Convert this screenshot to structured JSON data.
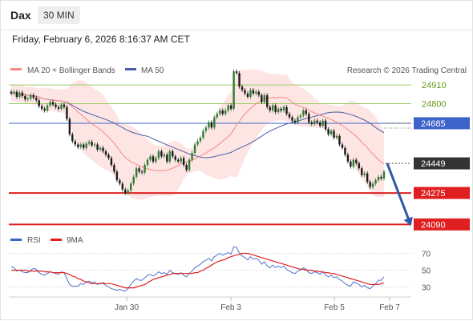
{
  "header": {
    "symbol": "Dax",
    "timeframe": "30 MIN",
    "datetime": "Friday, February 6, 2026 8:16:37 AM CET"
  },
  "legend": {
    "ma20": "MA 20 + Bollinger Bands",
    "ma50": "MA 50",
    "rsi": "RSI",
    "rsi_ma": "9MA"
  },
  "credit": "Research © 2026 Trading Central",
  "colors": {
    "ma20": "#f28b82",
    "ma50": "#4a5fa8",
    "band": "#fde0df",
    "green": "#9ccc65",
    "red": "#e02020",
    "blue": "#3d63c9",
    "dark": "#333333",
    "arrow": "#2e5aa8",
    "up": "#2e7d32",
    "down": "#1a1a1a"
  },
  "chart_data": [
    {
      "type": "candlestick",
      "ylim": [
        24040,
        25000
      ],
      "x_ticks": [
        "Jan 30",
        "Feb 3",
        "Feb 5",
        "Feb 7"
      ],
      "levels": [
        {
          "value": 24910,
          "label": "24910",
          "style": "green"
        },
        {
          "value": 24800,
          "label": "24800",
          "style": "green"
        },
        {
          "value": 24685,
          "label": "24685",
          "style": "blue"
        },
        {
          "value": 24449,
          "label": "24449",
          "style": "dark"
        },
        {
          "value": 24275,
          "label": "24275",
          "style": "red"
        },
        {
          "value": 24090,
          "label": "24090",
          "style": "red"
        }
      ],
      "forecast": {
        "from": 24449,
        "to": 24090
      },
      "close": [
        24860,
        24870,
        24840,
        24865,
        24845,
        24825,
        24830,
        24850,
        24835,
        24820,
        24785,
        24770,
        24760,
        24790,
        24810,
        24795,
        24780,
        24770,
        24795,
        24780,
        24710,
        24620,
        24580,
        24560,
        24545,
        24560,
        24540,
        24565,
        24575,
        24555,
        24560,
        24530,
        24540,
        24520,
        24500,
        24480,
        24440,
        24400,
        24350,
        24330,
        24295,
        24275,
        24290,
        24330,
        24370,
        24420,
        24400,
        24395,
        24440,
        24470,
        24490,
        24460,
        24480,
        24520,
        24490,
        24500,
        24460,
        24520,
        24490,
        24470,
        24460,
        24480,
        24440,
        24410,
        24470,
        24510,
        24560,
        24580,
        24600,
        24640,
        24660,
        24690,
        24660,
        24720,
        24740,
        24760,
        24740,
        24760,
        24790,
        24770,
        24990,
        24980,
        24900,
        24880,
        24860,
        24840,
        24880,
        24860,
        24870,
        24850,
        24810,
        24850,
        24780,
        24760,
        24790,
        24750,
        24770,
        24760,
        24780,
        24740,
        24720,
        24700,
        24690,
        24720,
        24730,
        24760,
        24740,
        24690,
        24680,
        24700,
        24690,
        24670,
        24700,
        24650,
        24620,
        24640,
        24600,
        24610,
        24560,
        24540,
        24500,
        24460,
        24430,
        24470,
        24450,
        24420,
        24380,
        24390,
        24340,
        24310,
        24330,
        24350,
        24370,
        24360,
        24400
      ]
    },
    {
      "type": "line",
      "ylim": [
        20,
        80
      ],
      "y_ticks": [
        "70",
        "50",
        "30"
      ],
      "rsi": [
        54,
        53,
        49,
        50,
        48,
        47,
        47,
        50,
        52,
        51,
        47,
        45,
        44,
        46,
        48,
        47,
        46,
        45,
        48,
        47,
        40,
        33,
        31,
        31,
        31,
        34,
        33,
        36,
        37,
        35,
        36,
        33,
        35,
        34,
        32,
        30,
        28,
        27,
        26,
        27,
        26,
        25,
        28,
        33,
        37,
        40,
        38,
        38,
        41,
        44,
        45,
        43,
        45,
        48,
        46,
        47,
        45,
        50,
        47,
        46,
        45,
        47,
        44,
        42,
        46,
        49,
        53,
        55,
        57,
        60,
        62,
        64,
        61,
        66,
        68,
        70,
        68,
        69,
        71,
        69,
        78,
        77,
        70,
        67,
        65,
        62,
        66,
        63,
        64,
        62,
        57,
        60,
        55,
        53,
        56,
        53,
        55,
        53,
        55,
        51,
        49,
        47,
        46,
        49,
        50,
        53,
        51,
        47,
        46,
        48,
        47,
        45,
        48,
        44,
        42,
        44,
        41,
        42,
        39,
        37,
        34,
        32,
        31,
        36,
        35,
        33,
        30,
        32,
        29,
        28,
        31,
        34,
        38,
        38,
        42
      ],
      "rsi_ma": [
        50,
        50,
        50,
        50,
        50,
        50,
        49,
        49,
        49,
        49,
        49,
        49,
        48,
        48,
        48,
        47,
        47,
        47,
        47,
        47,
        46,
        45,
        43,
        42,
        40,
        39,
        37,
        36,
        35,
        34,
        34,
        34,
        34,
        35,
        34,
        34,
        34,
        33,
        32,
        31,
        30,
        29,
        29,
        29,
        29,
        30,
        31,
        32,
        33,
        35,
        37,
        39,
        40,
        41,
        42,
        43,
        44,
        45,
        46,
        46,
        46,
        46,
        46,
        46,
        46,
        46,
        47,
        47,
        49,
        50,
        52,
        54,
        56,
        58,
        60,
        61,
        62,
        63,
        65,
        66,
        67,
        68,
        69,
        70,
        70,
        70,
        69,
        68,
        67,
        66,
        65,
        64,
        63,
        62,
        61,
        60,
        59,
        58,
        57,
        56,
        55,
        54,
        53,
        52,
        51,
        51,
        50,
        50,
        50,
        49,
        49,
        48,
        48,
        47,
        47,
        46,
        46,
        45,
        44,
        43,
        42,
        41,
        40,
        39,
        38,
        37,
        36,
        35,
        34,
        33,
        33,
        33,
        33,
        34,
        35
      ]
    }
  ]
}
